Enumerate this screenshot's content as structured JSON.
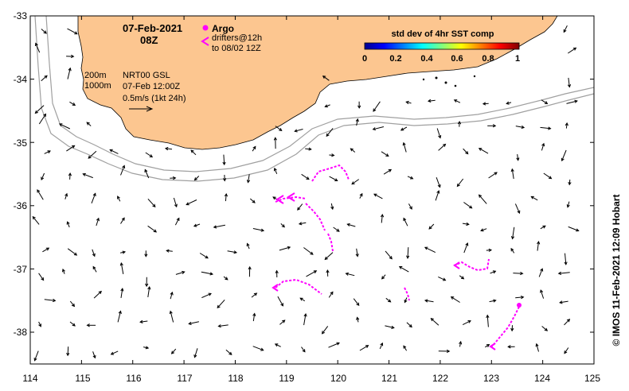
{
  "title": {
    "date": "07-Feb-2021",
    "time": "08Z"
  },
  "legend": {
    "argo_label": "Argo",
    "drifter_label_1": "drifters@12h",
    "drifter_label_2": "to 08/02 12Z",
    "argo_color": "#ff00ff",
    "drifter_color": "#ff00ff"
  },
  "isobaths": {
    "label_200": "200m",
    "label_1000": "1000m",
    "color": "#a0a0a0"
  },
  "product": {
    "line1": "NRT00 GSL",
    "line2": "07-Feb 12:00Z",
    "line3": "0.5m/s (1kt 24h)"
  },
  "colorbar": {
    "title": "std dev of 4hr SST comp",
    "ticks": [
      "0",
      "0.2",
      "0.4",
      "0.6",
      "0.8",
      "1"
    ],
    "range": [
      0,
      1
    ]
  },
  "credit": "©  IMOS 11-Feb-2021 12:09 Hobart",
  "map_data": {
    "land_color": "#fcc690",
    "ocean_color": "#ffffff",
    "lon_range": [
      114,
      125
    ],
    "lat_range": [
      -38.5,
      -33
    ],
    "x_ticks": [
      "114",
      "115",
      "116",
      "117",
      "118",
      "119",
      "120",
      "121",
      "122",
      "123",
      "124",
      "125"
    ],
    "y_ticks": [
      "-33",
      "-34",
      "-35",
      "-36",
      "-37",
      "-38"
    ]
  }
}
